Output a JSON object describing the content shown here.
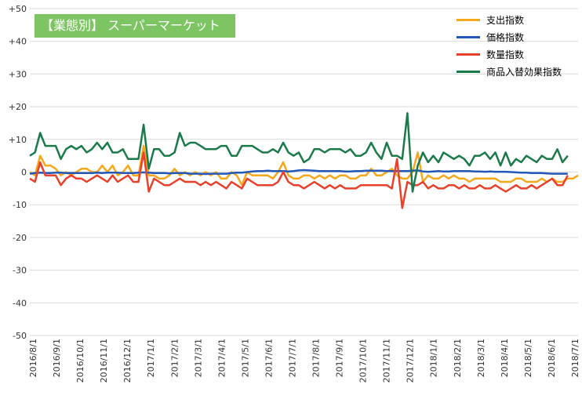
{
  "chart_data": {
    "type": "line",
    "title": "【業態別】 スーパーマーケット",
    "ylim": [
      -50,
      50
    ],
    "yticks": [
      50,
      40,
      30,
      20,
      10,
      0,
      -10,
      -20,
      -30,
      -40,
      -50
    ],
    "ytick_labels": [
      "+50",
      "+40",
      "+30",
      "+20",
      "+10",
      "0",
      "-10",
      "-20",
      "-30",
      "-40",
      "-50"
    ],
    "xtick_labels": [
      "2016/8/1",
      "2016/9/1",
      "2016/10/1",
      "2016/11/1",
      "2016/12/1",
      "2017/1/1",
      "2017/2/1",
      "2017/3/1",
      "2017/4/1",
      "2017/5/1",
      "2017/6/1",
      "2017/7/1",
      "2017/8/1",
      "2017/9/1",
      "2017/10/1",
      "2017/11/1",
      "2017/12/1",
      "2018/1/1",
      "2018/2/1",
      "2018/3/1",
      "2018/4/1",
      "2018/5/1",
      "2018/6/1",
      "2018/7/1"
    ],
    "grid": true,
    "legend_position": "top-right",
    "series": [
      {
        "name": "支出指数",
        "color": "#f5a81c",
        "values": [
          0,
          -1,
          5,
          2,
          2,
          1,
          -1,
          0,
          -1,
          0,
          1,
          1,
          0,
          0,
          2,
          0,
          2,
          -1,
          0,
          2,
          -1,
          -1,
          8,
          -1,
          -1,
          -2,
          -2,
          -1,
          1,
          -1,
          0,
          -1,
          0,
          -1,
          0,
          -1,
          0,
          -2,
          -2,
          0,
          -1,
          -4,
          0,
          -1,
          -1,
          -1,
          -1,
          -2,
          0,
          3,
          -1,
          -2,
          -2,
          -1,
          -1,
          -2,
          -1,
          -2,
          -1,
          -2,
          -1,
          -1,
          -2,
          -2,
          -1,
          -1,
          1,
          -1,
          -1,
          0,
          1,
          -1,
          -2,
          -2,
          0,
          6,
          -3,
          -1,
          -2,
          -2,
          -1,
          -2,
          -1,
          -2,
          -2,
          -3,
          -2,
          -2,
          -2,
          -2,
          -2,
          -3,
          -3,
          -3,
          -2,
          -2,
          -3,
          -3,
          -3,
          -2,
          -3,
          -2,
          -3,
          -3,
          -2,
          -2,
          -1
        ]
      },
      {
        "name": "価格指数",
        "color": "#2358b8",
        "values": [
          -0.5,
          -0.3,
          -0.2,
          -0.3,
          -0.3,
          -0.2,
          -0.2,
          -0.3,
          -0.3,
          -0.3,
          -0.3,
          -0.3,
          -0.3,
          -0.2,
          -0.3,
          -0.2,
          -0.2,
          -0.2,
          -0.3,
          -0.3,
          -0.3,
          -0.2,
          -0.1,
          -0.2,
          -0.3,
          -0.3,
          -0.3,
          -0.4,
          -0.3,
          -0.3,
          -0.3,
          -0.5,
          -0.5,
          -0.5,
          -0.6,
          -0.5,
          -0.5,
          -0.5,
          -0.5,
          -0.3,
          -0.2,
          -0.2,
          0,
          0.2,
          0.3,
          0.3,
          0.4,
          0.3,
          0.3,
          0.3,
          0.2,
          0.3,
          0.5,
          0.6,
          0.5,
          0.4,
          0.3,
          0.3,
          0.3,
          0.3,
          0.3,
          0.2,
          0.2,
          0.3,
          0.3,
          0.4,
          0.4,
          0.4,
          0.4,
          0.3,
          0.3,
          0.3,
          0.3,
          0.3,
          0.4,
          0.5,
          0.2,
          0.1,
          0.2,
          0.3,
          0.2,
          0.2,
          0.3,
          0.3,
          0.3,
          0.3,
          0.2,
          0.2,
          0.1,
          0.2,
          0.1,
          0.1,
          0.1,
          0,
          -0.1,
          -0.2,
          -0.2,
          -0.3,
          -0.3,
          -0.3,
          -0.4,
          -0.5,
          -0.5,
          -0.5,
          -0.5
        ]
      },
      {
        "name": "数量指数",
        "color": "#e8402a",
        "values": [
          -2,
          -3,
          3,
          -1,
          -1,
          -1,
          -4,
          -2,
          -1,
          -2,
          -2,
          -3,
          -2,
          -1,
          -2,
          -3,
          -1,
          -3,
          -2,
          -1,
          -3,
          -3,
          6,
          -6,
          -2,
          -3,
          -4,
          -4,
          -3,
          -2,
          -3,
          -3,
          -3,
          -4,
          -3,
          -4,
          -3,
          -4,
          -5,
          -3,
          -4,
          -5,
          -2,
          -3,
          -4,
          -4,
          -4,
          -4,
          -3,
          0,
          -3,
          -4,
          -4,
          -5,
          -4,
          -3,
          -4,
          -5,
          -4,
          -5,
          -4,
          -5,
          -5,
          -5,
          -4,
          -4,
          -4,
          -4,
          -4,
          -4,
          -5,
          4,
          -11,
          -3,
          -4,
          -4,
          -3,
          -5,
          -4,
          -5,
          -5,
          -4,
          -4,
          -5,
          -4,
          -5,
          -5,
          -4,
          -5,
          -5,
          -4,
          -5,
          -6,
          -5,
          -4,
          -5,
          -5,
          -4,
          -5,
          -4,
          -3,
          -2,
          -4,
          -4,
          -1
        ]
      },
      {
        "name": "商品入替効果指数",
        "color": "#1a7a4a",
        "values": [
          5,
          6,
          12,
          8,
          8,
          8,
          4,
          7,
          8,
          7,
          8,
          6,
          7,
          9,
          7,
          9,
          6,
          6,
          7,
          4,
          4,
          4,
          14.5,
          1,
          7,
          7,
          5,
          5,
          6,
          12,
          8,
          9,
          9,
          8,
          7,
          7,
          7,
          8,
          8,
          5,
          5,
          8,
          8,
          8,
          7,
          6,
          6,
          7,
          6,
          9,
          6,
          5,
          6,
          3,
          4,
          7,
          7,
          6,
          7,
          7,
          7,
          6,
          7,
          5,
          5,
          6,
          9,
          6,
          4,
          9,
          5,
          5,
          4,
          18,
          -6,
          2,
          6,
          3,
          5,
          3,
          6,
          5,
          4,
          5,
          4,
          2,
          5,
          5,
          6,
          4,
          6,
          2,
          6,
          2,
          4,
          3,
          5,
          4,
          3,
          5,
          4,
          4,
          7,
          3,
          5
        ]
      }
    ]
  }
}
